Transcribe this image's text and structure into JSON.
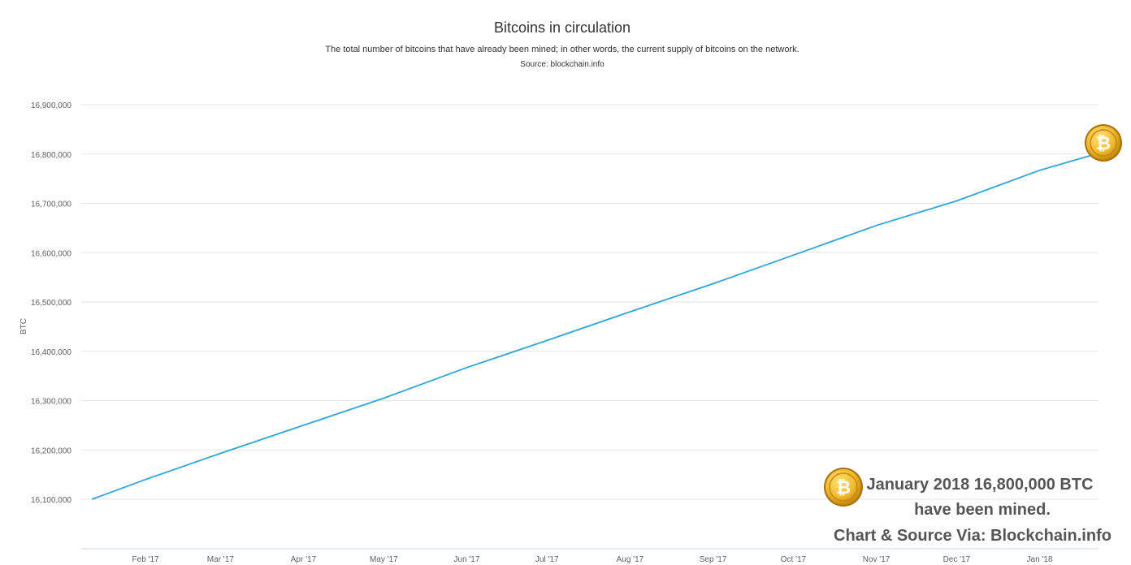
{
  "chart_data": {
    "type": "line",
    "title": "Bitcoins in circulation",
    "subtitle": "The total number of bitcoins that have already been mined; in other words, the current supply of bitcoins on the network.",
    "source": "Source: blockchain.info",
    "ylabel": "BTC",
    "xlabel": "",
    "ylim": [
      16100000,
      16900000
    ],
    "yticks": [
      {
        "value": 16100000,
        "label": "16,100,000"
      },
      {
        "value": 16200000,
        "label": "16,200,000"
      },
      {
        "value": 16300000,
        "label": "16,300,000"
      },
      {
        "value": 16400000,
        "label": "16,400,000"
      },
      {
        "value": 16500000,
        "label": "16,500,000"
      },
      {
        "value": 16600000,
        "label": "16,600,000"
      },
      {
        "value": 16700000,
        "label": "16,700,000"
      },
      {
        "value": 16800000,
        "label": "16,800,000"
      },
      {
        "value": 16900000,
        "label": "16,900,000"
      }
    ],
    "xlim": [
      "2017-01-08",
      "2018-01-23"
    ],
    "xticks": [
      {
        "value": "2017-02-01",
        "label": "Feb '17"
      },
      {
        "value": "2017-03-01",
        "label": "Mar '17"
      },
      {
        "value": "2017-04-01",
        "label": "Apr '17"
      },
      {
        "value": "2017-05-01",
        "label": "May '17"
      },
      {
        "value": "2017-06-01",
        "label": "Jun '17"
      },
      {
        "value": "2017-07-01",
        "label": "Jul '17"
      },
      {
        "value": "2017-08-01",
        "label": "Aug '17"
      },
      {
        "value": "2017-09-01",
        "label": "Sep '17"
      },
      {
        "value": "2017-10-01",
        "label": "Oct '17"
      },
      {
        "value": "2017-11-01",
        "label": "Nov '17"
      },
      {
        "value": "2017-12-01",
        "label": "Dec '17"
      },
      {
        "value": "2018-01-01",
        "label": "Jan '18"
      }
    ],
    "grid": true,
    "legend": "none",
    "series": [
      {
        "color": "#2fa4dd",
        "points": [
          {
            "x": "2017-01-12",
            "y": 16100000
          },
          {
            "x": "2017-02-01",
            "y": 16140000
          },
          {
            "x": "2017-03-01",
            "y": 16193000
          },
          {
            "x": "2017-04-01",
            "y": 16250000
          },
          {
            "x": "2017-05-01",
            "y": 16305000
          },
          {
            "x": "2017-06-01",
            "y": 16367000
          },
          {
            "x": "2017-07-01",
            "y": 16422000
          },
          {
            "x": "2017-08-01",
            "y": 16480000
          },
          {
            "x": "2017-09-01",
            "y": 16537000
          },
          {
            "x": "2017-10-01",
            "y": 16595000
          },
          {
            "x": "2017-11-01",
            "y": 16655000
          },
          {
            "x": "2017-12-01",
            "y": 16705000
          },
          {
            "x": "2018-01-01",
            "y": 16767000
          },
          {
            "x": "2018-01-22",
            "y": 16800000
          }
        ]
      }
    ]
  },
  "annotation": {
    "line1": "January 2018 16,800,000 BTC",
    "line2": "have been mined.",
    "line3": "Chart & Source Via: Blockchain.info"
  },
  "coin": {
    "symbol": "₿",
    "icon": "bitcoin-coin-icon",
    "color_outer": "#c8920f",
    "color_inner": "#f2b92f"
  }
}
